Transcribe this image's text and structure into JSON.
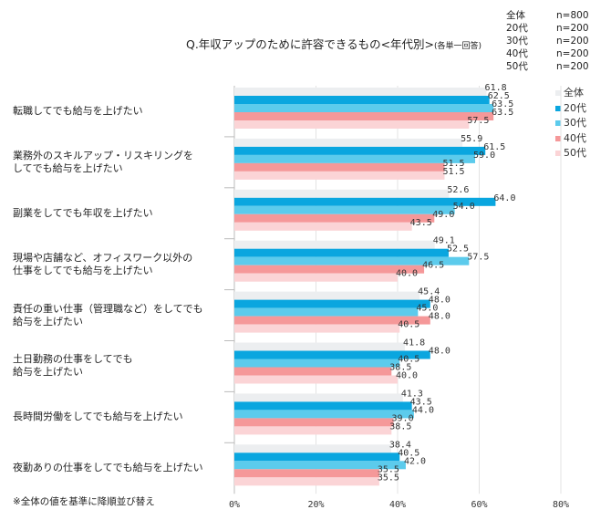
{
  "chart_data": {
    "type": "bar",
    "orientation": "horizontal",
    "title": "Q.年収アップのために許容できるもの<年代別>",
    "title_note": "(各単一回答)",
    "categories": [
      "転職してでも給与を上げたい",
      "業務外のスキルアップ・リスキリングを\nしてでも給与を上げたい",
      "副業をしてでも年収を上げたい",
      "現場や店舗など、オフィスワーク以外の\n仕事をしてでも給与を上げたい",
      "責任の重い仕事（管理職など）をしてでも\n給与を上げたい",
      "土日勤務の仕事をしてでも\n給与を上げたい",
      "長時間労働をしてでも給与を上げたい",
      "夜勤ありの仕事をしてでも給与を上げたい"
    ],
    "series": [
      {
        "name": "全体",
        "color": "#eceef0",
        "values": [
          61.8,
          55.9,
          52.6,
          49.1,
          45.4,
          41.8,
          41.3,
          38.4
        ]
      },
      {
        "name": "20代",
        "color": "#0aa6df",
        "values": [
          62.5,
          61.5,
          64.0,
          52.5,
          48.0,
          48.0,
          43.5,
          40.5
        ]
      },
      {
        "name": "30代",
        "color": "#5ccbec",
        "values": [
          63.5,
          59.0,
          54.0,
          57.5,
          45.0,
          40.5,
          44.0,
          42.0
        ]
      },
      {
        "name": "40代",
        "color": "#f59899",
        "values": [
          63.5,
          51.5,
          49.0,
          46.5,
          48.0,
          38.5,
          39.0,
          35.5
        ]
      },
      {
        "name": "50代",
        "color": "#fbd4d6",
        "values": [
          57.5,
          51.5,
          43.5,
          40.0,
          40.5,
          40.0,
          38.5,
          35.5
        ]
      }
    ],
    "xlim": [
      0,
      80
    ],
    "xticks": [
      "0%",
      "20%",
      "40%",
      "60%",
      "80%"
    ],
    "grid": true,
    "legend_position": "right",
    "sample_sizes": [
      {
        "group": "全体",
        "n": "n=800"
      },
      {
        "group": "20代",
        "n": "n=200"
      },
      {
        "group": "30代",
        "n": "n=200"
      },
      {
        "group": "40代",
        "n": "n=200"
      },
      {
        "group": "50代",
        "n": "n=200"
      }
    ],
    "note": "※全体の値を基準に降順並び替え"
  }
}
